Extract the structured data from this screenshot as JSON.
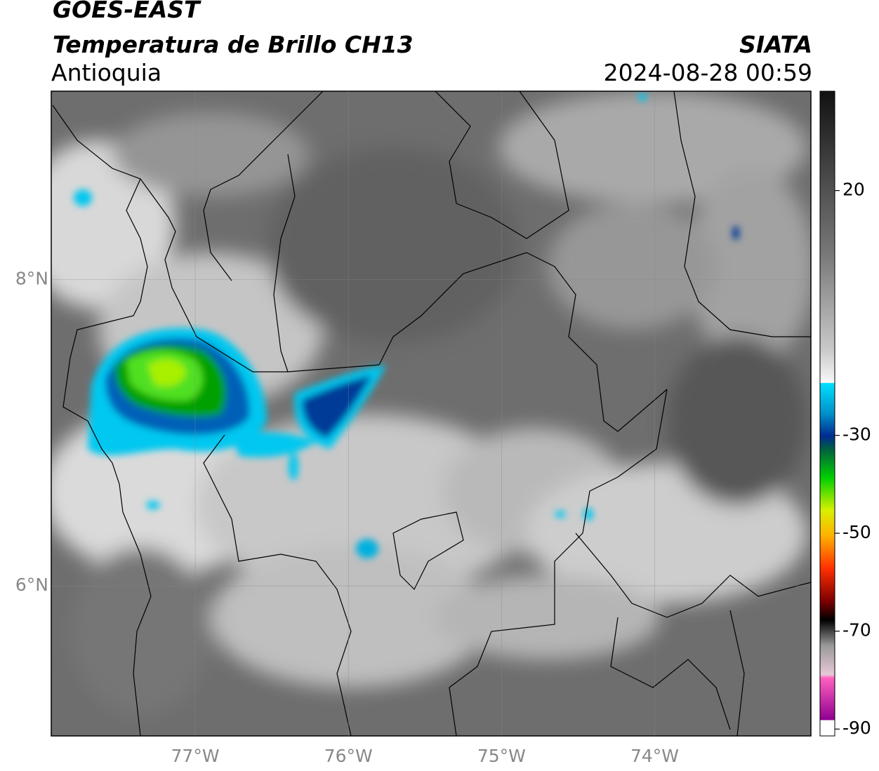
{
  "header": {
    "title": "GOES-EAST",
    "subtitle": "Temperatura de Brillo CH13",
    "region": "Antioquia",
    "source": "SIATA",
    "datetime": "2024-08-28 00:59"
  },
  "map": {
    "xlim": [
      -77.94,
      -72.98
    ],
    "ylim": [
      5.02,
      9.23
    ],
    "xticks": [
      {
        "value": -77,
        "label": "77°W"
      },
      {
        "value": -76,
        "label": "76°W"
      },
      {
        "value": -75,
        "label": "75°W"
      },
      {
        "value": -74,
        "label": "74°W"
      }
    ],
    "yticks": [
      {
        "value": 6,
        "label": "6°N"
      },
      {
        "value": 8,
        "label": "8°N"
      }
    ]
  },
  "colorbar": {
    "lim": [
      40.3,
      -91.4
    ],
    "ticks": [
      20,
      -30,
      -50,
      -70,
      -90
    ]
  }
}
